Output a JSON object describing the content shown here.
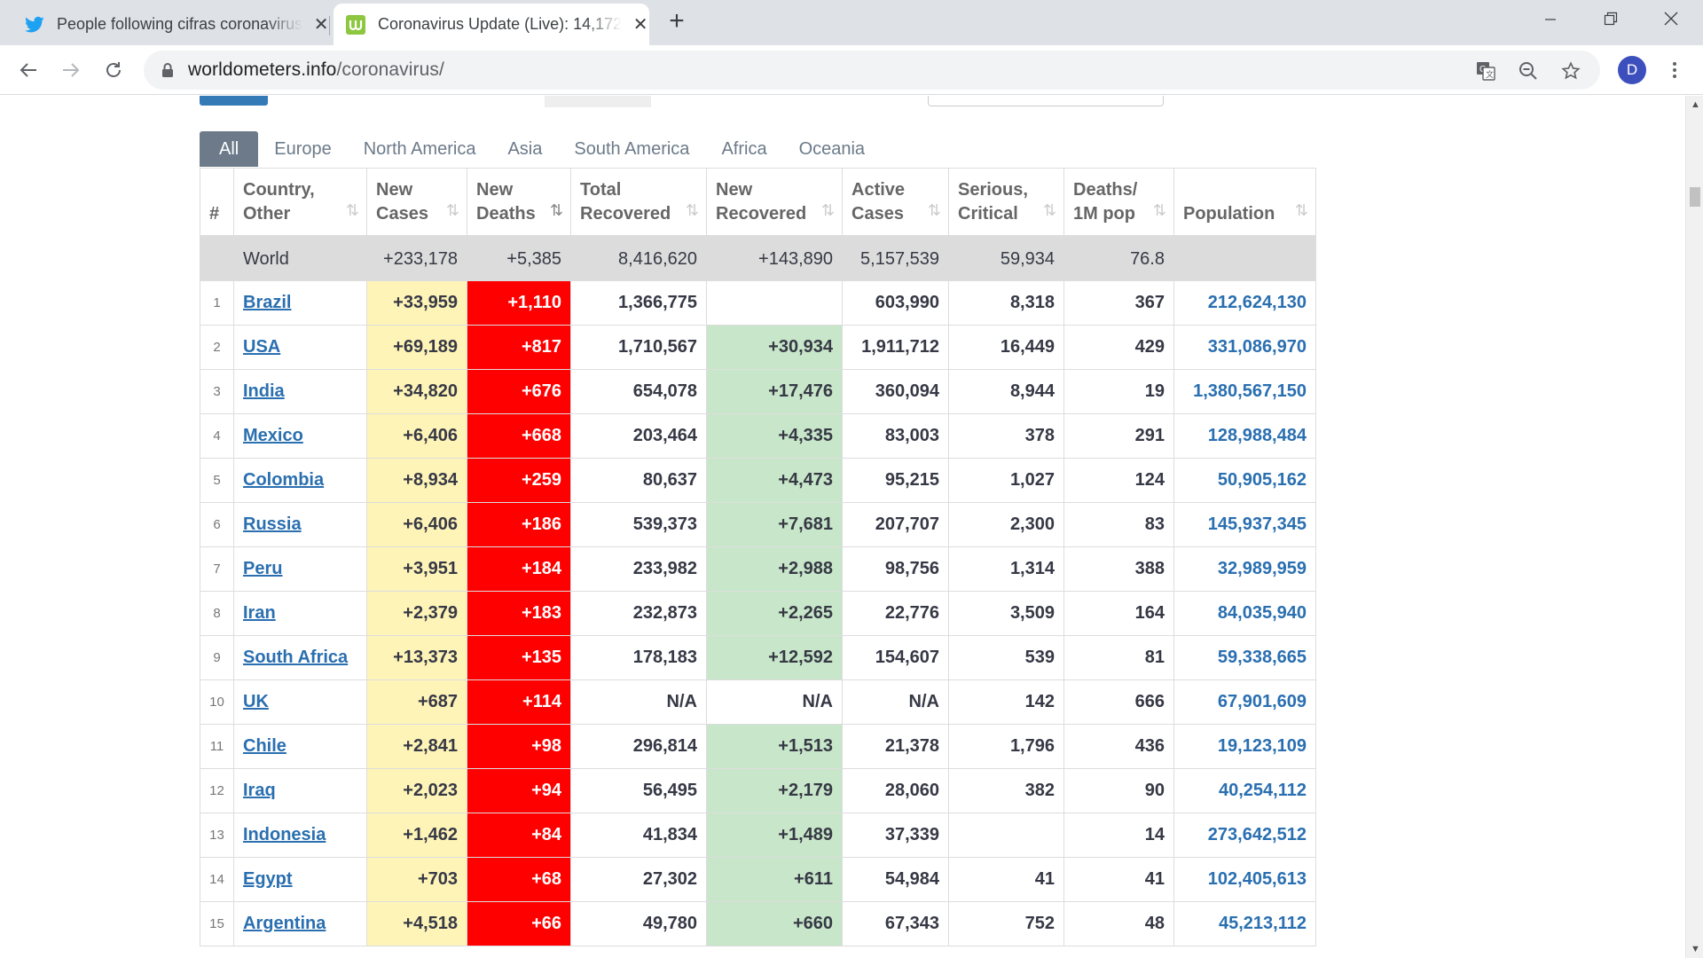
{
  "browser": {
    "tabs": [
      {
        "title": "People following cifras coronavirus",
        "icon": "twitter-icon",
        "active": false
      },
      {
        "title": "Coronavirus Update (Live): 14,172",
        "icon": "worldometers-icon",
        "active": true
      }
    ],
    "url_host": "worldometers.info",
    "url_path": "/coronavirus/",
    "profile_initial": "D"
  },
  "continent_tabs": [
    "All",
    "Europe",
    "North America",
    "Asia",
    "South America",
    "Africa",
    "Oceania"
  ],
  "table": {
    "headers": {
      "rank": "#",
      "country": [
        "Country,",
        "Other"
      ],
      "new_cases": [
        "New",
        "Cases"
      ],
      "new_deaths": [
        "New",
        "Deaths"
      ],
      "total_recovered": [
        "Total",
        "Recovered"
      ],
      "new_recovered": [
        "New",
        "Recovered"
      ],
      "active_cases": [
        "Active",
        "Cases"
      ],
      "serious": [
        "Serious,",
        "Critical"
      ],
      "deaths_1m": [
        "Deaths/",
        "1M pop"
      ],
      "population": "Population"
    },
    "world": {
      "country": "World",
      "new_cases": "+233,178",
      "new_deaths": "+5,385",
      "total_recovered": "8,416,620",
      "new_recovered": "+143,890",
      "active_cases": "5,157,539",
      "serious": "59,934",
      "deaths_1m": "76.8",
      "population": ""
    },
    "rows": [
      {
        "rank": "1",
        "country": "Brazil",
        "new_cases": "+33,959",
        "new_deaths": "+1,110",
        "total_recovered": "1,366,775",
        "new_recovered": "",
        "active_cases": "603,990",
        "serious": "8,318",
        "deaths_1m": "367",
        "population": "212,624,130"
      },
      {
        "rank": "2",
        "country": "USA",
        "new_cases": "+69,189",
        "new_deaths": "+817",
        "total_recovered": "1,710,567",
        "new_recovered": "+30,934",
        "active_cases": "1,911,712",
        "serious": "16,449",
        "deaths_1m": "429",
        "population": "331,086,970"
      },
      {
        "rank": "3",
        "country": "India",
        "new_cases": "+34,820",
        "new_deaths": "+676",
        "total_recovered": "654,078",
        "new_recovered": "+17,476",
        "active_cases": "360,094",
        "serious": "8,944",
        "deaths_1m": "19",
        "population": "1,380,567,150"
      },
      {
        "rank": "4",
        "country": "Mexico",
        "new_cases": "+6,406",
        "new_deaths": "+668",
        "total_recovered": "203,464",
        "new_recovered": "+4,335",
        "active_cases": "83,003",
        "serious": "378",
        "deaths_1m": "291",
        "population": "128,988,484"
      },
      {
        "rank": "5",
        "country": "Colombia",
        "new_cases": "+8,934",
        "new_deaths": "+259",
        "total_recovered": "80,637",
        "new_recovered": "+4,473",
        "active_cases": "95,215",
        "serious": "1,027",
        "deaths_1m": "124",
        "population": "50,905,162"
      },
      {
        "rank": "6",
        "country": "Russia",
        "new_cases": "+6,406",
        "new_deaths": "+186",
        "total_recovered": "539,373",
        "new_recovered": "+7,681",
        "active_cases": "207,707",
        "serious": "2,300",
        "deaths_1m": "83",
        "population": "145,937,345"
      },
      {
        "rank": "7",
        "country": "Peru",
        "new_cases": "+3,951",
        "new_deaths": "+184",
        "total_recovered": "233,982",
        "new_recovered": "+2,988",
        "active_cases": "98,756",
        "serious": "1,314",
        "deaths_1m": "388",
        "population": "32,989,959"
      },
      {
        "rank": "8",
        "country": "Iran",
        "new_cases": "+2,379",
        "new_deaths": "+183",
        "total_recovered": "232,873",
        "new_recovered": "+2,265",
        "active_cases": "22,776",
        "serious": "3,509",
        "deaths_1m": "164",
        "population": "84,035,940"
      },
      {
        "rank": "9",
        "country": "South Africa",
        "new_cases": "+13,373",
        "new_deaths": "+135",
        "total_recovered": "178,183",
        "new_recovered": "+12,592",
        "active_cases": "154,607",
        "serious": "539",
        "deaths_1m": "81",
        "population": "59,338,665"
      },
      {
        "rank": "10",
        "country": "UK",
        "new_cases": "+687",
        "new_deaths": "+114",
        "total_recovered": "N/A",
        "new_recovered": "N/A",
        "active_cases": "N/A",
        "serious": "142",
        "deaths_1m": "666",
        "population": "67,901,609"
      },
      {
        "rank": "11",
        "country": "Chile",
        "new_cases": "+2,841",
        "new_deaths": "+98",
        "total_recovered": "296,814",
        "new_recovered": "+1,513",
        "active_cases": "21,378",
        "serious": "1,796",
        "deaths_1m": "436",
        "population": "19,123,109"
      },
      {
        "rank": "12",
        "country": "Iraq",
        "new_cases": "+2,023",
        "new_deaths": "+94",
        "total_recovered": "56,495",
        "new_recovered": "+2,179",
        "active_cases": "28,060",
        "serious": "382",
        "deaths_1m": "90",
        "population": "40,254,112"
      },
      {
        "rank": "13",
        "country": "Indonesia",
        "new_cases": "+1,462",
        "new_deaths": "+84",
        "total_recovered": "41,834",
        "new_recovered": "+1,489",
        "active_cases": "37,339",
        "serious": "",
        "deaths_1m": "14",
        "population": "273,642,512"
      },
      {
        "rank": "14",
        "country": "Egypt",
        "new_cases": "+703",
        "new_deaths": "+68",
        "total_recovered": "27,302",
        "new_recovered": "+611",
        "active_cases": "54,984",
        "serious": "41",
        "deaths_1m": "41",
        "population": "102,405,613"
      },
      {
        "rank": "15",
        "country": "Argentina",
        "new_cases": "+4,518",
        "new_deaths": "+66",
        "total_recovered": "49,780",
        "new_recovered": "+660",
        "active_cases": "67,343",
        "serious": "752",
        "deaths_1m": "48",
        "population": "45,213,112"
      }
    ]
  },
  "colors": {
    "new_cases_bg": "#fff4b8",
    "new_deaths_bg": "#ff0000",
    "new_recovered_bg": "#c8e6c9",
    "link": "#2a6fb0",
    "tab_selected": "#6c7a89"
  }
}
